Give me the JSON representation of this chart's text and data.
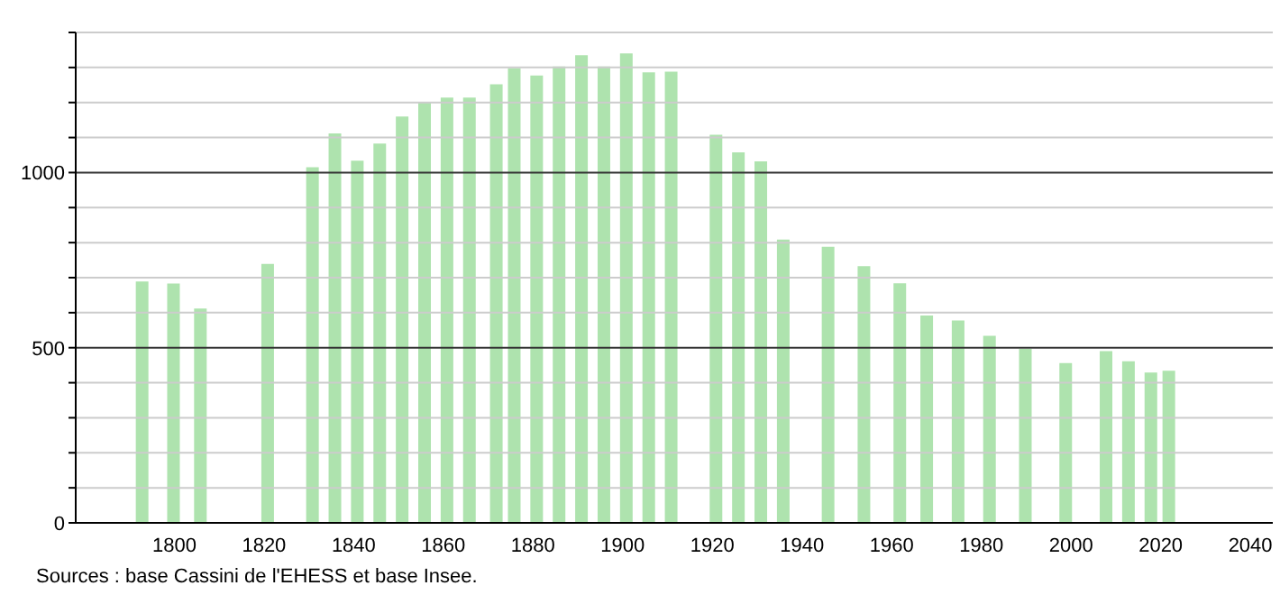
{
  "chart_data": {
    "type": "bar",
    "x": [
      1793,
      1800,
      1806,
      1821,
      1831,
      1836,
      1841,
      1846,
      1851,
      1856,
      1861,
      1866,
      1872,
      1876,
      1881,
      1886,
      1891,
      1896,
      1901,
      1906,
      1911,
      1921,
      1926,
      1931,
      1936,
      1946,
      1954,
      1962,
      1968,
      1975,
      1982,
      1990,
      1999,
      2008,
      2013,
      2018,
      2022
    ],
    "values": [
      689,
      683,
      612,
      739,
      1015,
      1112,
      1034,
      1083,
      1160,
      1202,
      1214,
      1214,
      1252,
      1298,
      1277,
      1303,
      1335,
      1303,
      1340,
      1286,
      1288,
      1108,
      1058,
      1032,
      809,
      788,
      733,
      684,
      592,
      578,
      534,
      497,
      456,
      490,
      461,
      429,
      434
    ],
    "color": "#aee3ae",
    "xlim": [
      1778,
      2045
    ],
    "xticks": [
      1800,
      1820,
      1840,
      1860,
      1880,
      1900,
      1920,
      1940,
      1960,
      1980,
      2000,
      2020,
      2040
    ],
    "ylim": [
      0,
      1400
    ],
    "yticks": [
      0,
      {
        "value": 100,
        "label": null
      },
      {
        "value": 200,
        "label": null
      },
      {
        "value": 300,
        "label": null
      },
      {
        "value": 400,
        "label": null
      },
      500,
      {
        "value": 600,
        "label": null
      },
      {
        "value": 700,
        "label": null
      },
      {
        "value": 800,
        "label": null
      },
      {
        "value": 900,
        "label": null
      },
      1000,
      {
        "value": 1100,
        "label": null
      },
      {
        "value": 1200,
        "label": null
      },
      {
        "value": 1300,
        "label": null
      },
      {
        "value": 1400,
        "label": null
      }
    ],
    "grid": "y",
    "annotations": [
      "Sources : base Cassini de l'EHESS et base Insee."
    ]
  }
}
